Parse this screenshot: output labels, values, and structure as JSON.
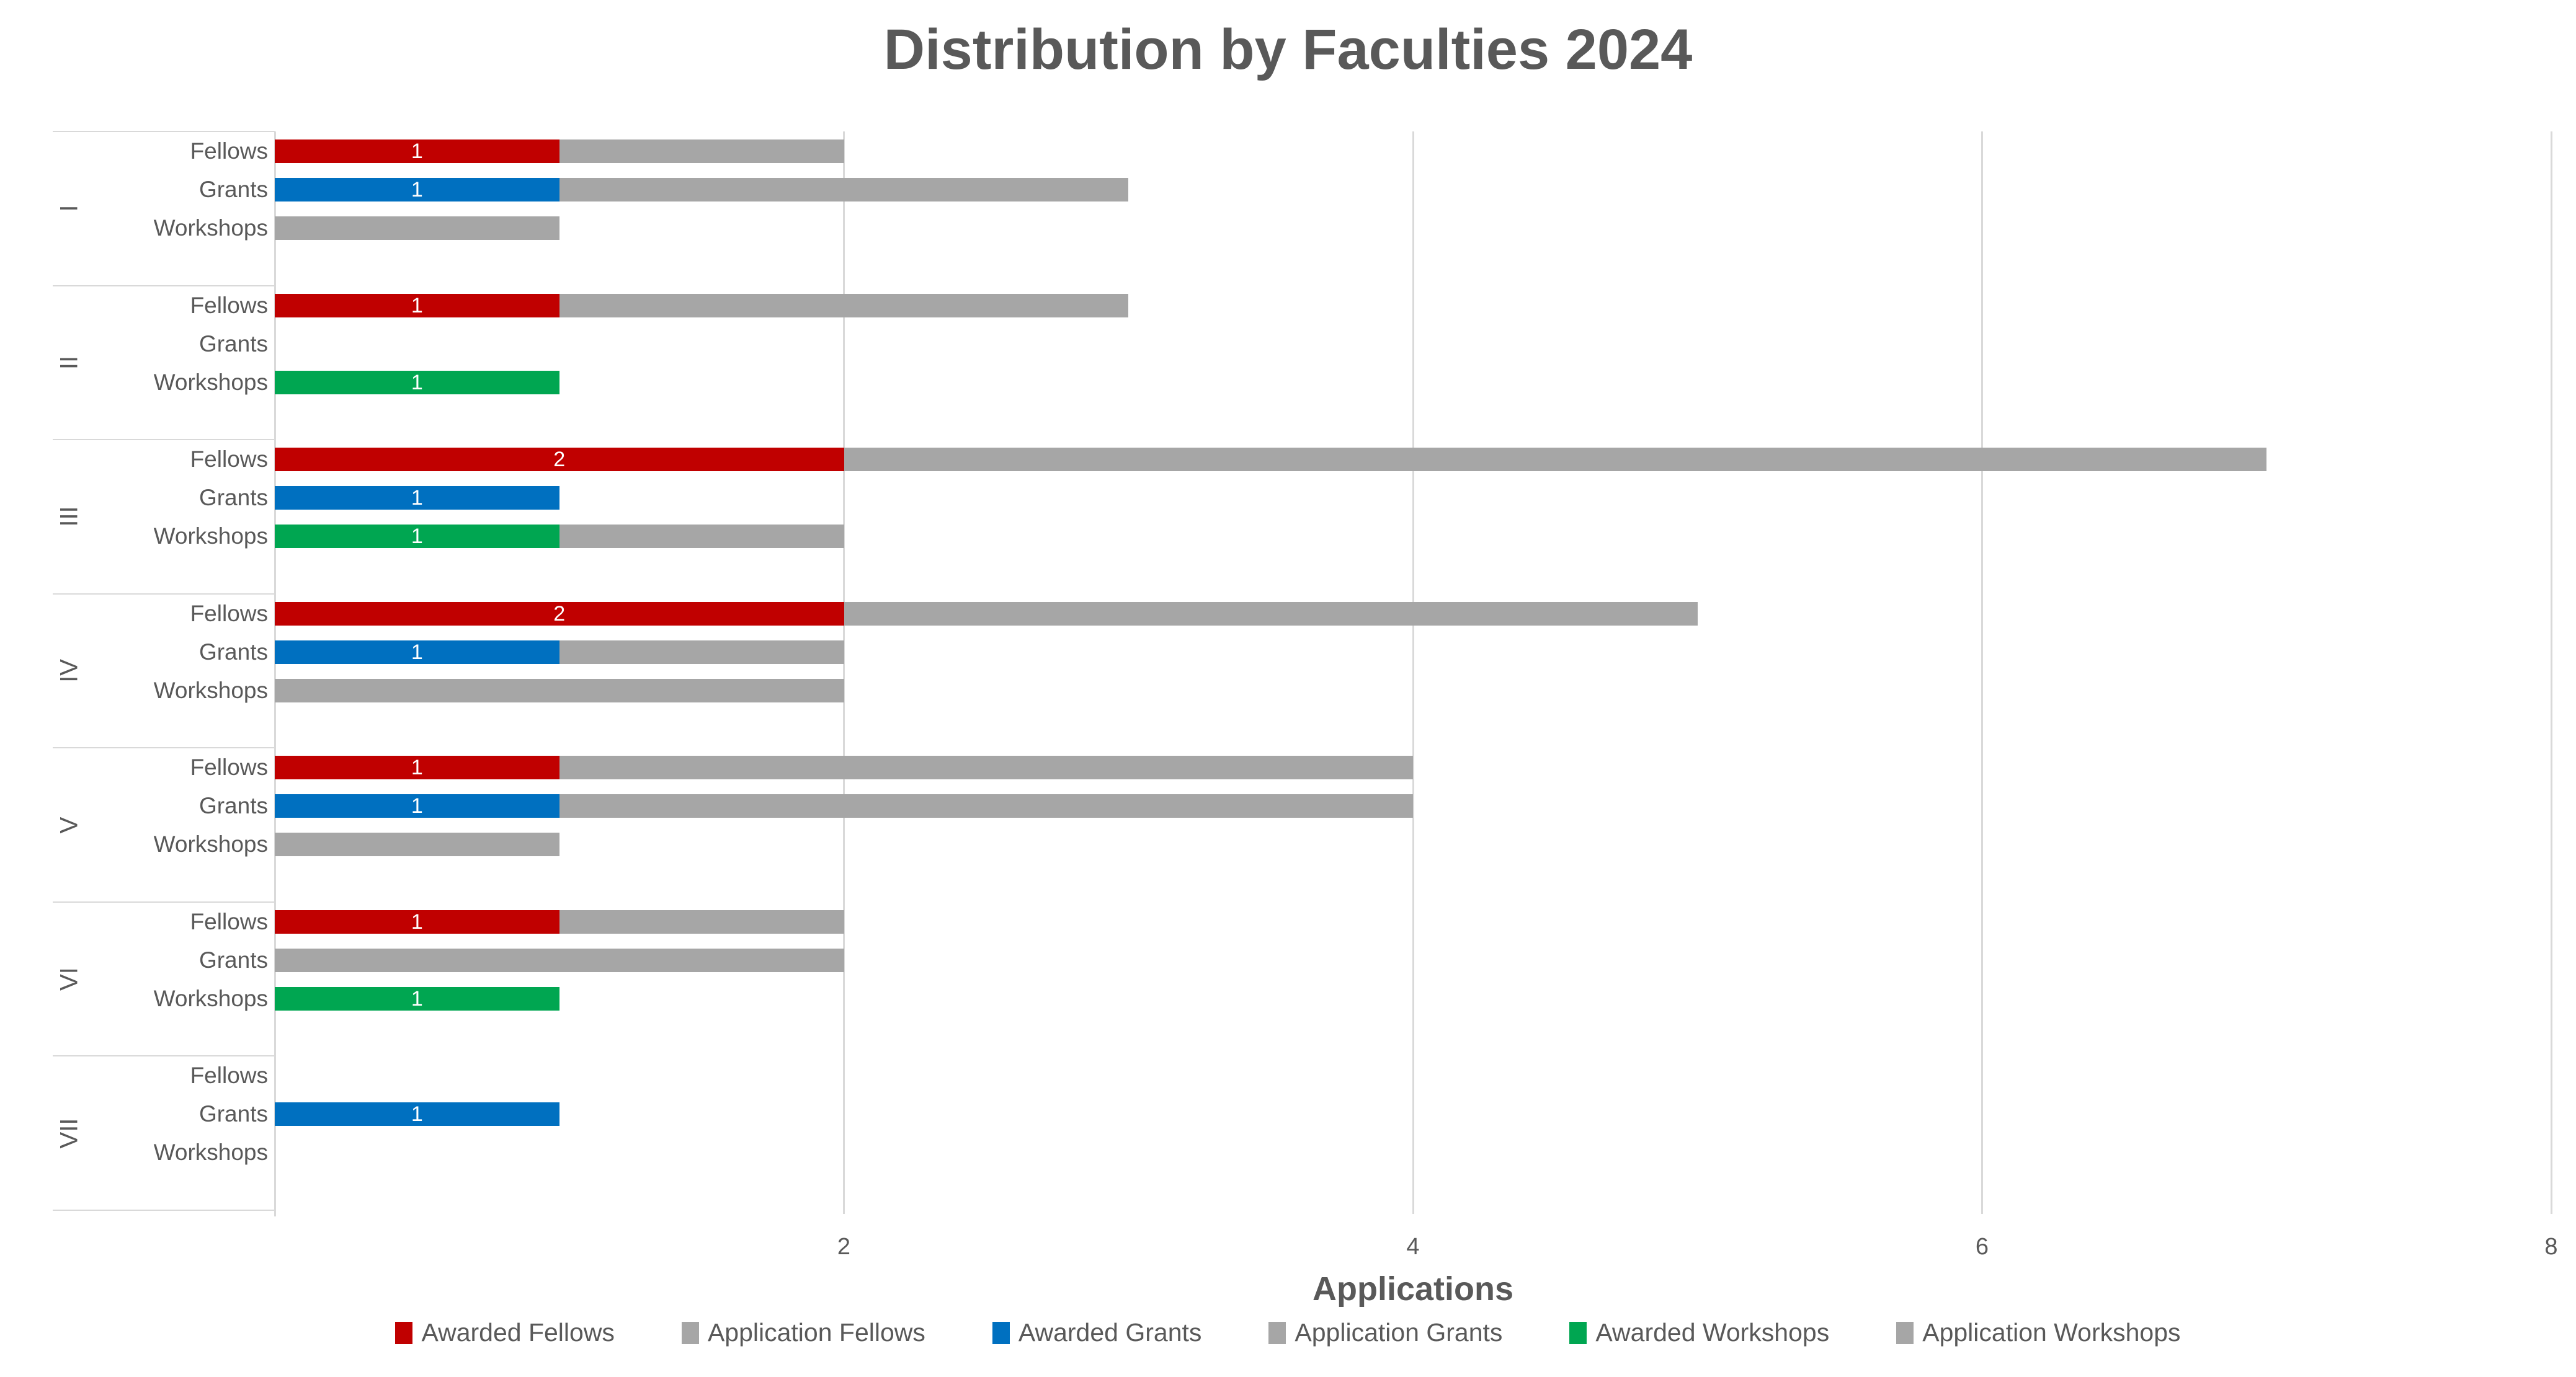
{
  "title": "Distribution by Faculties 2024",
  "axis": {
    "x_label": "Applications",
    "x_ticks": [
      "2",
      "4",
      "6",
      "8"
    ],
    "x_max": 8
  },
  "colors": {
    "awarded_fellows": "#C00000",
    "awarded_grants": "#0070C0",
    "awarded_workshops": "#00A651",
    "application": "#A6A6A6",
    "text": "#595959",
    "grid": "#D9D9D9"
  },
  "legend": [
    {
      "label": "Awarded Fellows",
      "color": "#C00000"
    },
    {
      "label": "Application Fellows",
      "color": "#A6A6A6"
    },
    {
      "label": "Awarded Grants",
      "color": "#0070C0"
    },
    {
      "label": "Application Grants",
      "color": "#A6A6A6"
    },
    {
      "label": "Awarded Workshops",
      "color": "#00A651"
    },
    {
      "label": "Application Workshops",
      "color": "#A6A6A6"
    }
  ],
  "chart_data": {
    "type": "bar",
    "orientation": "horizontal",
    "stacked": true,
    "title": "Distribution by Faculties 2024",
    "xlabel": "Applications",
    "xlim": [
      0,
      8
    ],
    "grid": "vertical",
    "legend_position": "bottom",
    "series_colors": {
      "Fellows": "#C00000",
      "Grants": "#0070C0",
      "Workshops": "#00A651",
      "Application": "#A6A6A6"
    },
    "groups": [
      {
        "faculty": "I",
        "rows": [
          {
            "category": "Fellows",
            "awarded": 1,
            "application": 1,
            "total": 2
          },
          {
            "category": "Grants",
            "awarded": 1,
            "application": 2,
            "total": 3
          },
          {
            "category": "Workshops",
            "awarded": 0,
            "application": 1,
            "total": 1
          }
        ]
      },
      {
        "faculty": "II",
        "rows": [
          {
            "category": "Fellows",
            "awarded": 1,
            "application": 2,
            "total": 3
          },
          {
            "category": "Grants",
            "awarded": 0,
            "application": 0,
            "total": 0
          },
          {
            "category": "Workshops",
            "awarded": 1,
            "application": 0,
            "total": 1
          }
        ]
      },
      {
        "faculty": "III",
        "rows": [
          {
            "category": "Fellows",
            "awarded": 2,
            "application": 5,
            "total": 7
          },
          {
            "category": "Grants",
            "awarded": 1,
            "application": 0,
            "total": 1
          },
          {
            "category": "Workshops",
            "awarded": 1,
            "application": 1,
            "total": 2
          }
        ]
      },
      {
        "faculty": "IV",
        "rows": [
          {
            "category": "Fellows",
            "awarded": 2,
            "application": 3,
            "total": 5
          },
          {
            "category": "Grants",
            "awarded": 1,
            "application": 1,
            "total": 2
          },
          {
            "category": "Workshops",
            "awarded": 0,
            "application": 2,
            "total": 2
          }
        ]
      },
      {
        "faculty": "V",
        "rows": [
          {
            "category": "Fellows",
            "awarded": 1,
            "application": 3,
            "total": 4
          },
          {
            "category": "Grants",
            "awarded": 1,
            "application": 3,
            "total": 4
          },
          {
            "category": "Workshops",
            "awarded": 0,
            "application": 1,
            "total": 1
          }
        ]
      },
      {
        "faculty": "VI",
        "rows": [
          {
            "category": "Fellows",
            "awarded": 1,
            "application": 1,
            "total": 2
          },
          {
            "category": "Grants",
            "awarded": 0,
            "application": 2,
            "total": 2
          },
          {
            "category": "Workshops",
            "awarded": 1,
            "application": 0,
            "total": 1
          }
        ]
      },
      {
        "faculty": "VII",
        "rows": [
          {
            "category": "Fellows",
            "awarded": 0,
            "application": 0,
            "total": 0
          },
          {
            "category": "Grants",
            "awarded": 1,
            "application": 0,
            "total": 1
          },
          {
            "category": "Workshops",
            "awarded": 0,
            "application": 0,
            "total": 0
          }
        ]
      }
    ]
  }
}
